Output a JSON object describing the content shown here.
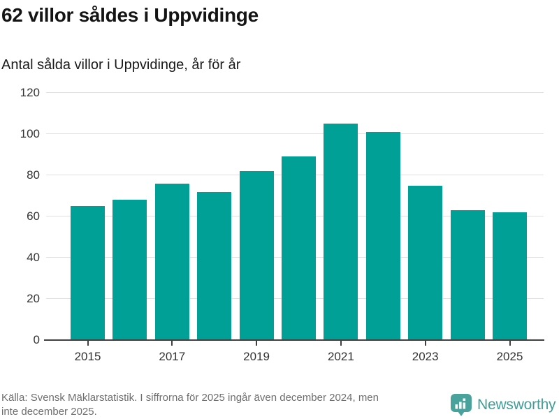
{
  "header": {
    "title": "62 villor såldes i Uppvidinge",
    "subtitle": "Antal sålda villor i Uppvidinge, år för år"
  },
  "footer": {
    "source_line1": "Källa: Svensk Mäklarstatistik. I siffrorna för 2025 ingår även december 2024, men",
    "source_line2": "inte december 2025.",
    "brand_name": "Newsworthy"
  },
  "colors": {
    "bar": "#00a096",
    "grid": "#e0e0e0",
    "axis": "#404040",
    "tick_label": "#333333",
    "footer_text": "#6e6e6e",
    "brand": "#3f9e99",
    "logo_bubble": "#4aa29c"
  },
  "chart_data": {
    "type": "bar",
    "title": "62 villor såldes i Uppvidinge",
    "subtitle": "Antal sålda villor i Uppvidinge, år för år",
    "categories": [
      "2015",
      "2016",
      "2017",
      "2018",
      "2019",
      "2020",
      "2021",
      "2022",
      "2023",
      "2024",
      "2025"
    ],
    "values": [
      65,
      68,
      76,
      72,
      82,
      89,
      105,
      101,
      75,
      63,
      62
    ],
    "ylim": [
      0,
      120
    ],
    "yticks": [
      0,
      20,
      40,
      60,
      80,
      100,
      120
    ],
    "xtick_labels": [
      "2015",
      "2017",
      "2019",
      "2021",
      "2023",
      "2025"
    ],
    "grid": true,
    "legend": false,
    "bar_color": "#00a096"
  }
}
